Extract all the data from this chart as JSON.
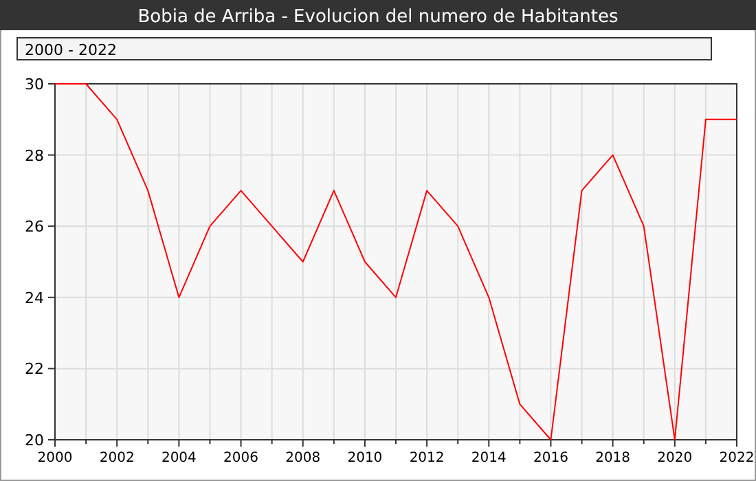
{
  "chart_data": {
    "type": "line",
    "title": "Bobia de Arriba - Evolucion del numero de Habitantes",
    "subtitle": "2000 - 2022",
    "x": [
      2000,
      2001,
      2002,
      2003,
      2004,
      2005,
      2006,
      2007,
      2008,
      2009,
      2010,
      2011,
      2012,
      2013,
      2014,
      2015,
      2016,
      2017,
      2018,
      2019,
      2020,
      2021,
      2022
    ],
    "series": [
      {
        "color": "#ff0000",
        "values": [
          30,
          30,
          29,
          27,
          24,
          26,
          27,
          26,
          25,
          27,
          25,
          24,
          27,
          26,
          24,
          21,
          20,
          27,
          28,
          26,
          20,
          29,
          29
        ]
      }
    ],
    "xlim": [
      2000,
      2022
    ],
    "xticks": [
      2000,
      {
        "value": 2001,
        "label": null
      },
      2002,
      {
        "value": 2003,
        "label": null
      },
      2004,
      {
        "value": 2005,
        "label": null
      },
      2006,
      {
        "value": 2007,
        "label": null
      },
      2008,
      {
        "value": 2009,
        "label": null
      },
      2010,
      {
        "value": 2011,
        "label": null
      },
      2012,
      {
        "value": 2013,
        "label": null
      },
      2014,
      {
        "value": 2015,
        "label": null
      },
      2016,
      {
        "value": 2017,
        "label": null
      },
      2018,
      {
        "value": 2019,
        "label": null
      },
      2020,
      {
        "value": 2021,
        "label": null
      },
      2022
    ],
    "ylim": [
      20,
      30
    ],
    "yticks": [
      20,
      22,
      24,
      26,
      28,
      30
    ],
    "grid": true,
    "marker": "none",
    "line_style": "solid"
  }
}
